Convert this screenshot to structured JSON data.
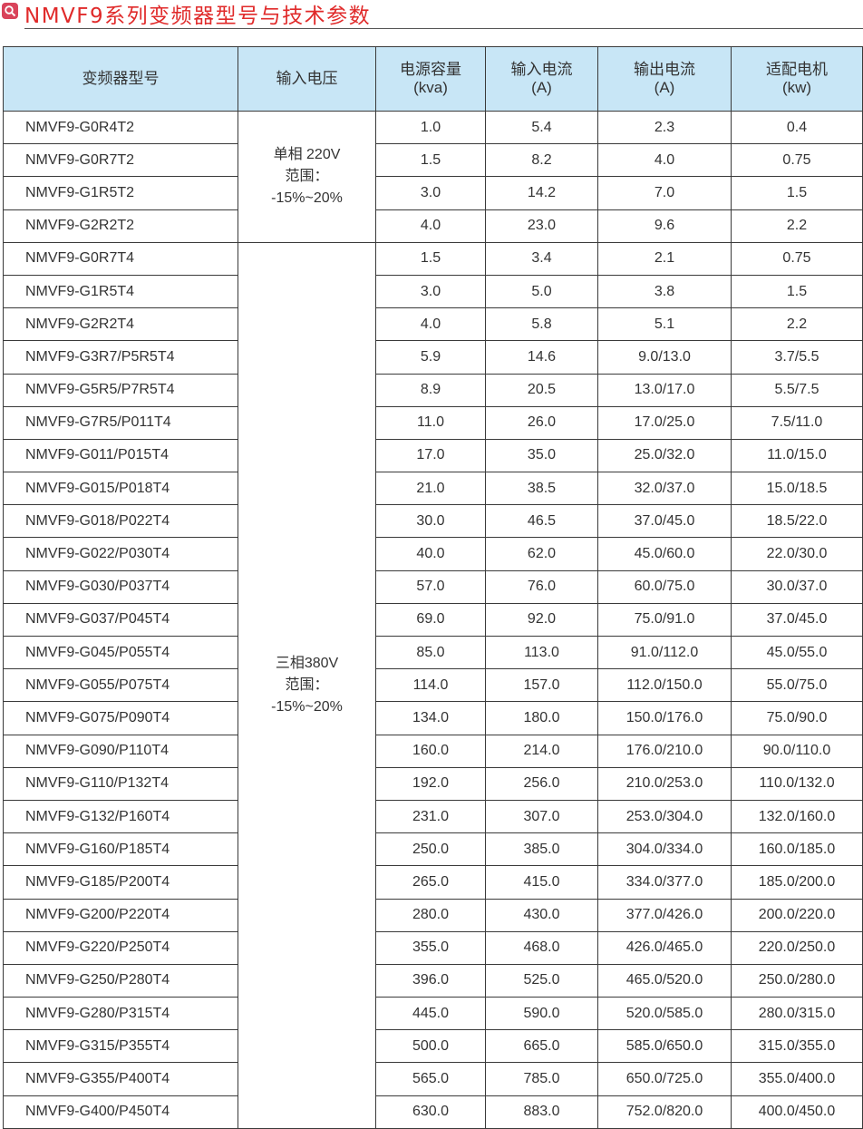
{
  "title": "NMVF9系列变频器型号与技术参数",
  "title_icon": "search-icon",
  "colors": {
    "title": "#e02a2a",
    "header_bg": "#c8e6f6",
    "icon_bg": "#d9435a"
  },
  "headers": [
    {
      "line1": "变频器型号",
      "line2": ""
    },
    {
      "line1": "输入电压",
      "line2": ""
    },
    {
      "line1": "电源容量",
      "line2": "(kva)"
    },
    {
      "line1": "输入电流",
      "line2": "(A)"
    },
    {
      "line1": "输出电流",
      "line2": "(A)"
    },
    {
      "line1": "适配电机",
      "line2": "(kw)"
    }
  ],
  "groups": [
    {
      "voltage": [
        "单相 220V",
        "范围：",
        "-15%~20%"
      ],
      "rows": [
        [
          "NMVF9-G0R4T2",
          "1.0",
          "5.4",
          "2.3",
          "0.4"
        ],
        [
          "NMVF9-G0R7T2",
          "1.5",
          "8.2",
          "4.0",
          "0.75"
        ],
        [
          "NMVF9-G1R5T2",
          "3.0",
          "14.2",
          "7.0",
          "1.5"
        ],
        [
          "NMVF9-G2R2T2",
          "4.0",
          "23.0",
          "9.6",
          "2.2"
        ]
      ]
    },
    {
      "voltage": [
        "三相380V",
        "范围：",
        "-15%~20%"
      ],
      "rows": [
        [
          "NMVF9-G0R7T4",
          "1.5",
          "3.4",
          "2.1",
          "0.75"
        ],
        [
          "NMVF9-G1R5T4",
          "3.0",
          "5.0",
          "3.8",
          "1.5"
        ],
        [
          "NMVF9-G2R2T4",
          "4.0",
          "5.8",
          "5.1",
          "2.2"
        ],
        [
          "NMVF9-G3R7/P5R5T4",
          "5.9",
          "14.6",
          "9.0/13.0",
          "3.7/5.5"
        ],
        [
          "NMVF9-G5R5/P7R5T4",
          "8.9",
          "20.5",
          "13.0/17.0",
          "5.5/7.5"
        ],
        [
          "NMVF9-G7R5/P011T4",
          "11.0",
          "26.0",
          "17.0/25.0",
          "7.5/11.0"
        ],
        [
          "NMVF9-G011/P015T4",
          "17.0",
          "35.0",
          "25.0/32.0",
          "11.0/15.0"
        ],
        [
          "NMVF9-G015/P018T4",
          "21.0",
          "38.5",
          "32.0/37.0",
          "15.0/18.5"
        ],
        [
          "NMVF9-G018/P022T4",
          "30.0",
          "46.5",
          "37.0/45.0",
          "18.5/22.0"
        ],
        [
          "NMVF9-G022/P030T4",
          "40.0",
          "62.0",
          "45.0/60.0",
          "22.0/30.0"
        ],
        [
          "NMVF9-G030/P037T4",
          "57.0",
          "76.0",
          "60.0/75.0",
          "30.0/37.0"
        ],
        [
          "NMVF9-G037/P045T4",
          "69.0",
          "92.0",
          "75.0/91.0",
          "37.0/45.0"
        ],
        [
          "NMVF9-G045/P055T4",
          "85.0",
          "113.0",
          "91.0/112.0",
          "45.0/55.0"
        ],
        [
          "NMVF9-G055/P075T4",
          "114.0",
          "157.0",
          "112.0/150.0",
          "55.0/75.0"
        ],
        [
          "NMVF9-G075/P090T4",
          "134.0",
          "180.0",
          "150.0/176.0",
          "75.0/90.0"
        ],
        [
          "NMVF9-G090/P110T4",
          "160.0",
          "214.0",
          "176.0/210.0",
          "90.0/110.0"
        ],
        [
          "NMVF9-G110/P132T4",
          "192.0",
          "256.0",
          "210.0/253.0",
          "110.0/132.0"
        ],
        [
          "NMVF9-G132/P160T4",
          "231.0",
          "307.0",
          "253.0/304.0",
          "132.0/160.0"
        ],
        [
          "NMVF9-G160/P185T4",
          "250.0",
          "385.0",
          "304.0/334.0",
          "160.0/185.0"
        ],
        [
          "NMVF9-G185/P200T4",
          "265.0",
          "415.0",
          "334.0/377.0",
          "185.0/200.0"
        ],
        [
          "NMVF9-G200/P220T4",
          "280.0",
          "430.0",
          "377.0/426.0",
          "200.0/220.0"
        ],
        [
          "NMVF9-G220/P250T4",
          "355.0",
          "468.0",
          "426.0/465.0",
          "220.0/250.0"
        ],
        [
          "NMVF9-G250/P280T4",
          "396.0",
          "525.0",
          "465.0/520.0",
          "250.0/280.0"
        ],
        [
          "NMVF9-G280/P315T4",
          "445.0",
          "590.0",
          "520.0/585.0",
          "280.0/315.0"
        ],
        [
          "NMVF9-G315/P355T4",
          "500.0",
          "665.0",
          "585.0/650.0",
          "315.0/355.0"
        ],
        [
          "NMVF9-G355/P400T4",
          "565.0",
          "785.0",
          "650.0/725.0",
          "355.0/400.0"
        ],
        [
          "NMVF9-G400/P450T4",
          "630.0",
          "883.0",
          "752.0/820.0",
          "400.0/450.0"
        ]
      ]
    }
  ]
}
